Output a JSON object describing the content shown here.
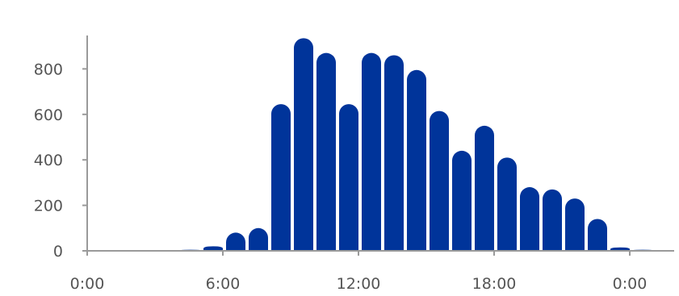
{
  "chart_data": {
    "type": "bar",
    "title": "",
    "xlabel": "",
    "ylabel": "",
    "ylim": [
      0,
      950
    ],
    "yticks": [
      0,
      200,
      400,
      600,
      800
    ],
    "ytick_labels": [
      "0",
      "200",
      "400",
      "600",
      "800"
    ],
    "xlim": [
      0,
      25
    ],
    "xticks": [
      0,
      6,
      12,
      18,
      24
    ],
    "xtick_labels": [
      "0:00",
      "6:00",
      "12:00",
      "18:00",
      "0:00"
    ],
    "x": [
      0,
      1,
      2,
      3,
      4,
      5,
      6,
      7,
      8,
      9,
      10,
      11,
      12,
      13,
      14,
      15,
      16,
      17,
      18,
      19,
      20,
      21,
      22,
      23,
      24
    ],
    "values": [
      0,
      0,
      0,
      0,
      5,
      20,
      75,
      100,
      645,
      935,
      870,
      645,
      870,
      860,
      795,
      615,
      440,
      550,
      410,
      280,
      270,
      230,
      140,
      15,
      5
    ],
    "bar_color": "#00349a",
    "axis_color": "#9a9a9a",
    "grid": false
  }
}
